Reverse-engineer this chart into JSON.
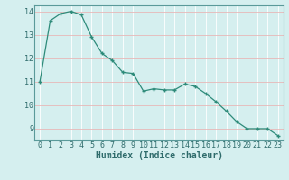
{
  "x": [
    0,
    1,
    2,
    3,
    4,
    5,
    6,
    7,
    8,
    9,
    10,
    11,
    12,
    13,
    14,
    15,
    16,
    17,
    18,
    19,
    20,
    21,
    22,
    23
  ],
  "y": [
    11.0,
    13.6,
    13.9,
    14.0,
    13.85,
    12.9,
    12.2,
    11.9,
    11.4,
    11.35,
    10.6,
    10.7,
    10.65,
    10.65,
    10.9,
    10.8,
    10.5,
    10.15,
    9.75,
    9.3,
    9.0,
    9.0,
    9.0,
    8.7
  ],
  "line_color": "#2e8b7a",
  "marker_color": "#2e8b7a",
  "bg_color": "#d5efef",
  "grid_major_color": "#c0dede",
  "grid_white_color": "#ffffff",
  "xlabel": "Humidex (Indice chaleur)",
  "xlabel_fontsize": 7,
  "tick_fontsize": 6,
  "ylim": [
    8.5,
    14.25
  ],
  "xlim": [
    -0.5,
    23.5
  ],
  "yticks": [
    9,
    10,
    11,
    12,
    13,
    14
  ],
  "xticks": [
    0,
    1,
    2,
    3,
    4,
    5,
    6,
    7,
    8,
    9,
    10,
    11,
    12,
    13,
    14,
    15,
    16,
    17,
    18,
    19,
    20,
    21,
    22,
    23
  ]
}
